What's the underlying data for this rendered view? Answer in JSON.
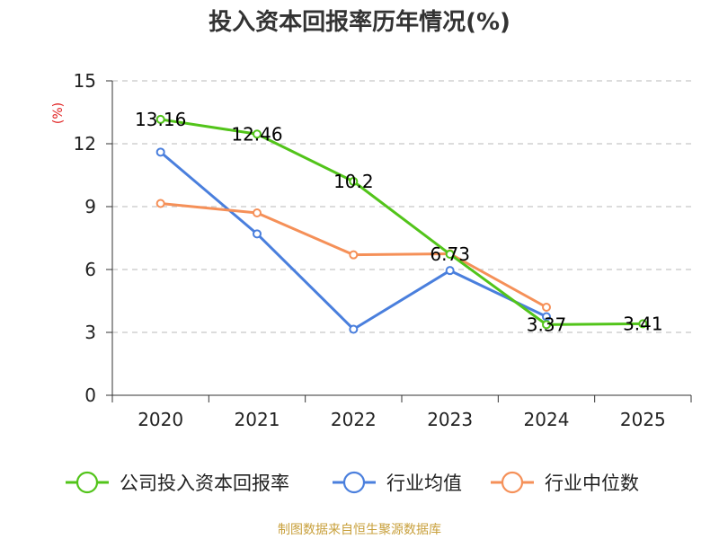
{
  "chart_data": {
    "type": "line",
    "title": "投入资本回报率历年情况(%)",
    "ylabel": "(%)",
    "xlabel": "",
    "categories": [
      "2020",
      "2021",
      "2022",
      "2023",
      "2024",
      "2025"
    ],
    "ylim": [
      0,
      15
    ],
    "yticks": [
      0,
      3,
      6,
      9,
      12,
      15
    ],
    "grid": true,
    "legend_position": "bottom",
    "series": [
      {
        "name": "公司投入资本回报率",
        "color": "#52c41a",
        "values": [
          13.16,
          12.46,
          10.2,
          6.73,
          3.37,
          3.41
        ],
        "labels": [
          "13.16",
          "12.46",
          "10.2",
          "6.73",
          "3.37",
          "3.41"
        ]
      },
      {
        "name": "行业均值",
        "color": "#4a7fdd",
        "values": [
          11.6,
          7.7,
          3.15,
          5.95,
          3.75,
          null
        ]
      },
      {
        "name": "行业中位数",
        "color": "#f59058",
        "values": [
          9.15,
          8.7,
          6.7,
          6.75,
          4.2,
          null
        ]
      }
    ]
  },
  "source": {
    "text": "制图数据来自恒生聚源数据库",
    "color": "#c8a03c"
  },
  "unit_color": "#e02020"
}
